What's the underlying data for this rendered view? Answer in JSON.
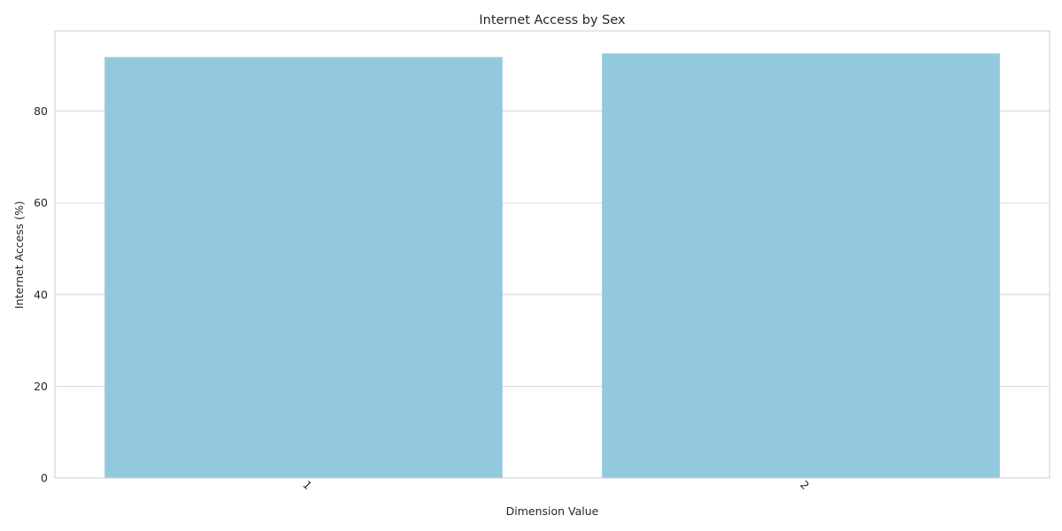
{
  "chart_data": {
    "type": "bar",
    "title": "Internet Access by Sex",
    "xlabel": "Dimension Value",
    "ylabel": "Internet Access (%)",
    "categories": [
      "1",
      "2"
    ],
    "values": [
      91.8,
      92.6
    ],
    "ylim": [
      0,
      97.5
    ],
    "yticks": [
      0,
      20,
      40,
      60,
      80
    ],
    "grid": true,
    "bar_color": "#92c9de",
    "x_tick_rotation_deg": 45
  }
}
